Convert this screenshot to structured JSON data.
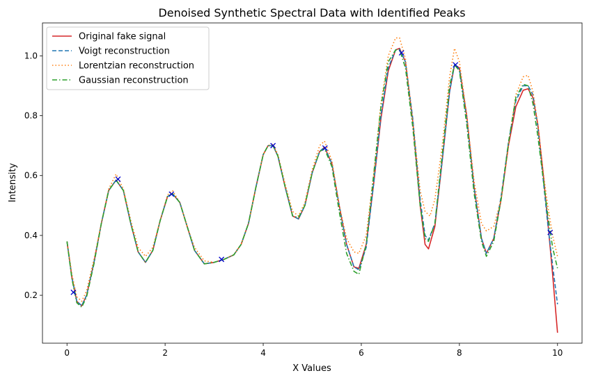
{
  "chart_data": {
    "type": "line",
    "title": "Denoised Synthetic Spectral Data with Identified Peaks",
    "xlabel": "X Values",
    "ylabel": "Intensity",
    "xlim": [
      -0.5,
      10.5
    ],
    "ylim": [
      0.04,
      1.11
    ],
    "xticks": [
      0,
      2,
      4,
      6,
      8,
      10
    ],
    "yticks": [
      0.2,
      0.4,
      0.6,
      0.8,
      1.0
    ],
    "xtick_labels": [
      "0",
      "2",
      "4",
      "6",
      "8",
      "10"
    ],
    "ytick_labels": [
      "0.2",
      "0.4",
      "0.6",
      "0.8",
      "1.0"
    ],
    "grid": false,
    "legend_position": "top-left",
    "series": [
      {
        "name": "Original fake signal",
        "color": "#d62728",
        "dash": "solid",
        "x": [
          0,
          0.1,
          0.2,
          0.3,
          0.4,
          0.55,
          0.7,
          0.85,
          1.0,
          1.15,
          1.3,
          1.45,
          1.6,
          1.75,
          1.9,
          2.05,
          2.15,
          2.3,
          2.45,
          2.6,
          2.8,
          3.0,
          3.2,
          3.4,
          3.55,
          3.7,
          3.85,
          4.0,
          4.1,
          4.2,
          4.3,
          4.45,
          4.6,
          4.72,
          4.85,
          5.0,
          5.15,
          5.25,
          5.4,
          5.55,
          5.7,
          5.85,
          5.95,
          6.1,
          6.25,
          6.4,
          6.55,
          6.7,
          6.78,
          6.9,
          7.05,
          7.2,
          7.3,
          7.37,
          7.5,
          7.65,
          7.8,
          7.9,
          8.0,
          8.15,
          8.3,
          8.45,
          8.55,
          8.7,
          8.85,
          9.0,
          9.15,
          9.3,
          9.4,
          9.5,
          9.6,
          9.7,
          9.8,
          9.9,
          10.0
        ],
        "y": [
          0.38,
          0.26,
          0.18,
          0.165,
          0.2,
          0.31,
          0.44,
          0.55,
          0.585,
          0.55,
          0.44,
          0.345,
          0.31,
          0.35,
          0.45,
          0.53,
          0.54,
          0.51,
          0.43,
          0.35,
          0.305,
          0.31,
          0.32,
          0.335,
          0.37,
          0.44,
          0.56,
          0.67,
          0.7,
          0.7,
          0.665,
          0.56,
          0.465,
          0.455,
          0.5,
          0.61,
          0.68,
          0.695,
          0.64,
          0.5,
          0.37,
          0.295,
          0.29,
          0.37,
          0.57,
          0.79,
          0.95,
          1.02,
          1.025,
          0.98,
          0.78,
          0.5,
          0.37,
          0.355,
          0.43,
          0.65,
          0.88,
          0.97,
          0.96,
          0.8,
          0.56,
          0.39,
          0.34,
          0.39,
          0.52,
          0.7,
          0.83,
          0.885,
          0.89,
          0.86,
          0.77,
          0.62,
          0.45,
          0.27,
          0.075
        ]
      },
      {
        "name": "Voigt reconstruction",
        "color": "#1f77b4",
        "dash": "dashed",
        "x": [
          0,
          0.1,
          0.2,
          0.3,
          0.4,
          0.55,
          0.7,
          0.85,
          1.0,
          1.15,
          1.3,
          1.45,
          1.6,
          1.75,
          1.9,
          2.05,
          2.15,
          2.3,
          2.45,
          2.6,
          2.8,
          3.0,
          3.2,
          3.4,
          3.55,
          3.7,
          3.85,
          4.0,
          4.1,
          4.2,
          4.3,
          4.45,
          4.6,
          4.72,
          4.85,
          5.0,
          5.15,
          5.25,
          5.4,
          5.55,
          5.7,
          5.85,
          5.95,
          6.1,
          6.25,
          6.4,
          6.55,
          6.7,
          6.78,
          6.9,
          7.05,
          7.2,
          7.3,
          7.37,
          7.5,
          7.65,
          7.8,
          7.9,
          8.0,
          8.15,
          8.3,
          8.45,
          8.55,
          8.7,
          8.85,
          9.0,
          9.15,
          9.3,
          9.4,
          9.5,
          9.6,
          9.7,
          9.8,
          9.9,
          10.0
        ],
        "y": [
          0.38,
          0.26,
          0.18,
          0.165,
          0.2,
          0.31,
          0.44,
          0.55,
          0.585,
          0.55,
          0.44,
          0.345,
          0.31,
          0.35,
          0.45,
          0.53,
          0.54,
          0.51,
          0.43,
          0.35,
          0.305,
          0.31,
          0.32,
          0.335,
          0.37,
          0.44,
          0.56,
          0.67,
          0.7,
          0.7,
          0.665,
          0.56,
          0.465,
          0.455,
          0.5,
          0.61,
          0.68,
          0.695,
          0.64,
          0.5,
          0.37,
          0.295,
          0.285,
          0.36,
          0.57,
          0.8,
          0.96,
          1.02,
          1.022,
          0.98,
          0.79,
          0.52,
          0.4,
          0.385,
          0.44,
          0.65,
          0.88,
          0.97,
          0.955,
          0.79,
          0.56,
          0.39,
          0.34,
          0.39,
          0.53,
          0.71,
          0.85,
          0.9,
          0.9,
          0.87,
          0.76,
          0.6,
          0.44,
          0.3,
          0.17
        ]
      },
      {
        "name": "Lorentzian reconstruction",
        "color": "#ff7f0e",
        "dash": "dotted",
        "x": [
          0,
          0.1,
          0.2,
          0.3,
          0.4,
          0.55,
          0.7,
          0.85,
          1.0,
          1.15,
          1.3,
          1.45,
          1.6,
          1.75,
          1.9,
          2.05,
          2.15,
          2.3,
          2.45,
          2.6,
          2.8,
          3.0,
          3.2,
          3.4,
          3.55,
          3.7,
          3.85,
          4.0,
          4.1,
          4.2,
          4.3,
          4.45,
          4.6,
          4.72,
          4.85,
          5.0,
          5.15,
          5.25,
          5.4,
          5.55,
          5.7,
          5.85,
          5.95,
          6.1,
          6.25,
          6.4,
          6.55,
          6.7,
          6.78,
          6.9,
          7.05,
          7.2,
          7.3,
          7.4,
          7.5,
          7.65,
          7.8,
          7.9,
          8.0,
          8.15,
          8.3,
          8.45,
          8.55,
          8.7,
          8.85,
          9.0,
          9.15,
          9.3,
          9.4,
          9.5,
          9.6,
          9.7,
          9.8,
          9.9,
          10.0
        ],
        "y": [
          0.38,
          0.27,
          0.195,
          0.18,
          0.215,
          0.32,
          0.44,
          0.555,
          0.605,
          0.555,
          0.45,
          0.36,
          0.33,
          0.36,
          0.45,
          0.535,
          0.55,
          0.51,
          0.43,
          0.36,
          0.315,
          0.31,
          0.32,
          0.335,
          0.37,
          0.44,
          0.56,
          0.67,
          0.7,
          0.705,
          0.67,
          0.57,
          0.48,
          0.465,
          0.51,
          0.62,
          0.7,
          0.715,
          0.65,
          0.5,
          0.39,
          0.345,
          0.34,
          0.4,
          0.6,
          0.84,
          1.0,
          1.06,
          1.06,
          0.99,
          0.78,
          0.55,
          0.48,
          0.465,
          0.52,
          0.7,
          0.93,
          1.025,
          0.98,
          0.8,
          0.58,
          0.44,
          0.415,
          0.43,
          0.52,
          0.7,
          0.87,
          0.93,
          0.935,
          0.88,
          0.77,
          0.62,
          0.5,
          0.4,
          0.33
        ]
      },
      {
        "name": "Gaussian reconstruction",
        "color": "#2ca02c",
        "dash": "dashdot",
        "x": [
          0,
          0.1,
          0.2,
          0.3,
          0.4,
          0.55,
          0.7,
          0.85,
          1.0,
          1.15,
          1.3,
          1.45,
          1.6,
          1.75,
          1.9,
          2.05,
          2.15,
          2.3,
          2.45,
          2.6,
          2.8,
          3.0,
          3.2,
          3.4,
          3.55,
          3.7,
          3.85,
          4.0,
          4.1,
          4.2,
          4.3,
          4.45,
          4.6,
          4.72,
          4.85,
          5.0,
          5.15,
          5.25,
          5.4,
          5.55,
          5.7,
          5.85,
          5.95,
          6.1,
          6.25,
          6.4,
          6.55,
          6.7,
          6.78,
          6.9,
          7.05,
          7.2,
          7.3,
          7.37,
          7.5,
          7.65,
          7.8,
          7.9,
          8.0,
          8.15,
          8.3,
          8.45,
          8.55,
          8.7,
          8.85,
          9.0,
          9.15,
          9.3,
          9.4,
          9.5,
          9.6,
          9.7,
          9.8,
          9.9,
          10.0
        ],
        "y": [
          0.38,
          0.255,
          0.175,
          0.16,
          0.195,
          0.305,
          0.44,
          0.55,
          0.585,
          0.55,
          0.44,
          0.345,
          0.31,
          0.35,
          0.45,
          0.53,
          0.54,
          0.51,
          0.43,
          0.35,
          0.305,
          0.31,
          0.32,
          0.335,
          0.37,
          0.44,
          0.56,
          0.67,
          0.7,
          0.7,
          0.665,
          0.56,
          0.465,
          0.46,
          0.5,
          0.61,
          0.68,
          0.69,
          0.63,
          0.48,
          0.34,
          0.28,
          0.27,
          0.37,
          0.6,
          0.83,
          0.98,
          1.02,
          1.02,
          0.96,
          0.76,
          0.5,
          0.39,
          0.38,
          0.44,
          0.67,
          0.9,
          0.97,
          0.95,
          0.77,
          0.54,
          0.38,
          0.33,
          0.38,
          0.52,
          0.71,
          0.86,
          0.905,
          0.9,
          0.84,
          0.73,
          0.6,
          0.47,
          0.36,
          0.29
        ]
      }
    ],
    "peaks": {
      "color": "#0000cc",
      "marker": "x",
      "x": [
        0.13,
        1.04,
        2.13,
        3.15,
        4.2,
        5.26,
        6.82,
        7.92,
        9.85
      ],
      "y": [
        0.21,
        0.588,
        0.538,
        0.32,
        0.7,
        0.692,
        1.01,
        0.97,
        0.41
      ]
    }
  }
}
